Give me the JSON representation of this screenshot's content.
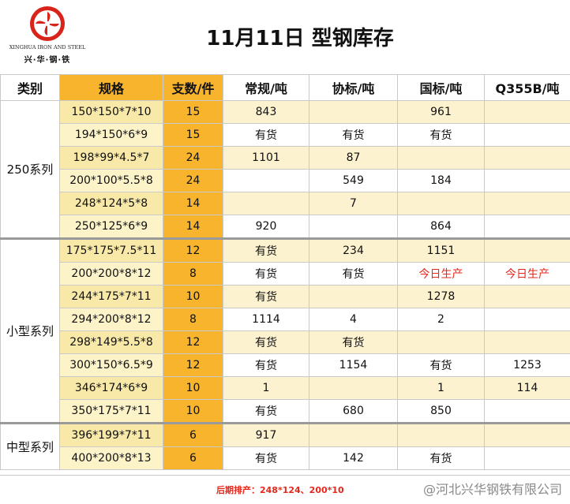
{
  "header": {
    "logo_en": "XINGHUA IRON AND STEEL",
    "logo_cn": "兴·华·钢·铁",
    "title": "11月11日 型钢库存",
    "logo_colors": {
      "primary": "#d9241b"
    }
  },
  "table": {
    "columns": [
      "类别",
      "规格",
      "支数/件",
      "常规/吨",
      "协标/吨",
      "国标/吨",
      "Q355B/吨"
    ],
    "groups": [
      {
        "name": "250系列",
        "rows": [
          {
            "spec": "150*150*7*10",
            "count": "15",
            "normal": "843",
            "assoc": "",
            "national": "961",
            "q355b": ""
          },
          {
            "spec": "194*150*6*9",
            "count": "15",
            "normal": "有货",
            "assoc": "有货",
            "national": "有货",
            "q355b": ""
          },
          {
            "spec": "198*99*4.5*7",
            "count": "24",
            "normal": "1101",
            "assoc": "87",
            "national": "",
            "q355b": ""
          },
          {
            "spec": "200*100*5.5*8",
            "count": "24",
            "normal": "",
            "assoc": "549",
            "national": "184",
            "q355b": ""
          },
          {
            "spec": "248*124*5*8",
            "count": "14",
            "normal": "",
            "assoc": "7",
            "national": "",
            "q355b": ""
          },
          {
            "spec": "250*125*6*9",
            "count": "14",
            "normal": "920",
            "assoc": "",
            "national": "864",
            "q355b": ""
          }
        ]
      },
      {
        "name": "小型系列",
        "rows": [
          {
            "spec": "175*175*7.5*11",
            "count": "12",
            "normal": "有货",
            "assoc": "234",
            "national": "1151",
            "q355b": ""
          },
          {
            "spec": "200*200*8*12",
            "count": "8",
            "normal": "有货",
            "assoc": "有货",
            "national": "今日生产",
            "q355b": "今日生产"
          },
          {
            "spec": "244*175*7*11",
            "count": "10",
            "normal": "有货",
            "assoc": "",
            "national": "1278",
            "q355b": ""
          },
          {
            "spec": "294*200*8*12",
            "count": "8",
            "normal": "1114",
            "assoc": "4",
            "national": "2",
            "q355b": ""
          },
          {
            "spec": "298*149*5.5*8",
            "count": "12",
            "normal": "有货",
            "assoc": "有货",
            "national": "",
            "q355b": ""
          },
          {
            "spec": "300*150*6.5*9",
            "count": "12",
            "normal": "有货",
            "assoc": "1154",
            "national": "有货",
            "q355b": "1253"
          },
          {
            "spec": "346*174*6*9",
            "count": "10",
            "normal": "1",
            "assoc": "",
            "national": "1",
            "q355b": "114"
          },
          {
            "spec": "350*175*7*11",
            "count": "10",
            "normal": "有货",
            "assoc": "680",
            "national": "850",
            "q355b": ""
          }
        ]
      },
      {
        "name": "中型系列",
        "rows": [
          {
            "spec": "396*199*7*11",
            "count": "6",
            "normal": "917",
            "assoc": "",
            "national": "",
            "q355b": ""
          },
          {
            "spec": "400*200*8*13",
            "count": "6",
            "normal": "有货",
            "assoc": "142",
            "national": "有货",
            "q355b": ""
          }
        ]
      }
    ]
  },
  "footer": {
    "note": "后期排产：248*124、200*10",
    "watermark": "@河北兴华钢铁有限公司"
  }
}
